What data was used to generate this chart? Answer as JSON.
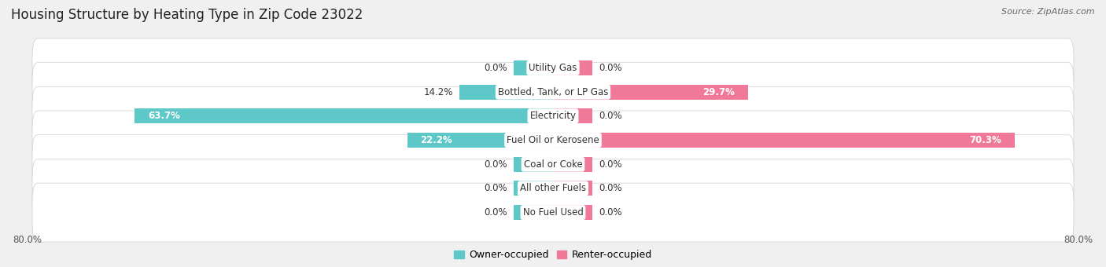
{
  "title": "Housing Structure by Heating Type in Zip Code 23022",
  "source": "Source: ZipAtlas.com",
  "categories": [
    "Utility Gas",
    "Bottled, Tank, or LP Gas",
    "Electricity",
    "Fuel Oil or Kerosene",
    "Coal or Coke",
    "All other Fuels",
    "No Fuel Used"
  ],
  "owner_values": [
    0.0,
    14.2,
    63.7,
    22.2,
    0.0,
    0.0,
    0.0
  ],
  "renter_values": [
    0.0,
    29.7,
    0.0,
    70.3,
    0.0,
    0.0,
    0.0
  ],
  "owner_color": "#5ec8c8",
  "renter_color": "#f07898",
  "owner_label": "Owner-occupied",
  "renter_label": "Renter-occupied",
  "x_min": -80.0,
  "x_max": 80.0,
  "background_color": "#f0f0f0",
  "row_bg_color": "#ffffff",
  "title_fontsize": 12,
  "source_fontsize": 8,
  "label_fontsize": 8.5,
  "bar_height": 0.62,
  "zero_stub": 6.0
}
